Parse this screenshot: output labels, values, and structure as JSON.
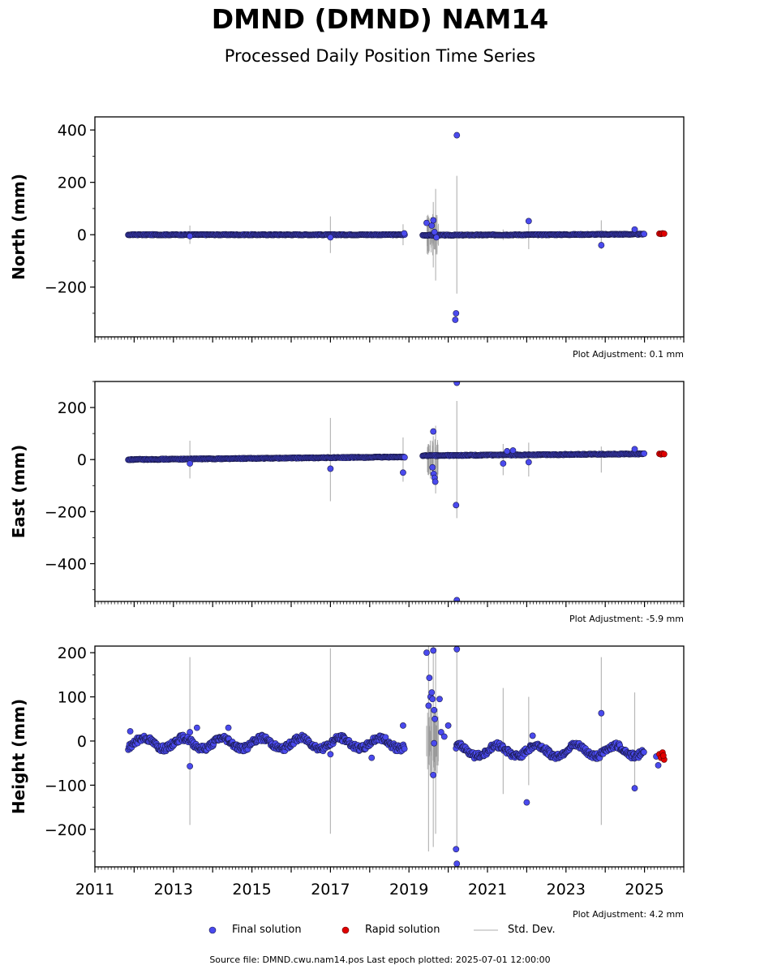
{
  "title": "DMND (DMND) NAM14",
  "subtitle": "Processed Daily Position Time Series",
  "colors": {
    "final": "#4a4aee",
    "final_edge": "#1a1a4a",
    "rapid": "#e00000",
    "std": "#b8b8b8"
  },
  "legend": {
    "final": "Final solution",
    "rapid": "Rapid solution",
    "std": "Std. Dev."
  },
  "footer": "Source file: DMND.cwu.nam14.pos  Last epoch plotted: 2025-07-01 12:00:00",
  "chart_data": [
    {
      "type": "scatter",
      "ylabel": "North (mm)",
      "adjustment": "Plot Adjustment: 0.1 mm",
      "xlim": [
        2011,
        2026
      ],
      "ylim": [
        -390,
        450
      ],
      "yticks": [
        -200,
        0,
        200,
        400
      ],
      "x_tick_labels_shown": false,
      "series": [
        {
          "name": "Final solution",
          "segments": [
            {
              "x": [
                2011.85,
                2018.9
              ],
              "y": [
                0,
                0
              ]
            },
            {
              "x": [
                2019.35,
                2025.0
              ],
              "y": [
                -2,
                2
              ]
            }
          ],
          "points": [
            [
              2013.42,
              -5
            ],
            [
              2017.0,
              -10
            ],
            [
              2018.88,
              5
            ],
            [
              2019.45,
              45
            ],
            [
              2019.58,
              35
            ],
            [
              2019.62,
              55
            ],
            [
              2019.65,
              10
            ],
            [
              2019.7,
              -10
            ],
            [
              2020.22,
              380
            ],
            [
              2020.2,
              -300
            ],
            [
              2020.18,
              -325
            ],
            [
              2022.05,
              52
            ],
            [
              2023.9,
              -40
            ],
            [
              2024.75,
              20
            ]
          ]
        },
        {
          "name": "Rapid solution",
          "points": [
            [
              2025.38,
              4
            ],
            [
              2025.42,
              3
            ],
            [
              2025.46,
              5
            ],
            [
              2025.5,
              4
            ]
          ]
        }
      ],
      "std_bars": [
        [
          2013.42,
          70
        ],
        [
          2017.0,
          140
        ],
        [
          2018.85,
          80
        ],
        [
          2019.5,
          130
        ],
        [
          2019.62,
          250
        ],
        [
          2019.68,
          350
        ],
        [
          2020.22,
          450
        ],
        [
          2021.4,
          40
        ],
        [
          2022.05,
          110
        ],
        [
          2023.9,
          110
        ]
      ]
    },
    {
      "type": "scatter",
      "ylabel": "East (mm)",
      "adjustment": "Plot Adjustment: -5.9 mm",
      "xlim": [
        2011,
        2026
      ],
      "ylim": [
        -545,
        300
      ],
      "yticks": [
        -400,
        -200,
        0,
        200
      ],
      "x_tick_labels_shown": false,
      "series": [
        {
          "name": "Final solution",
          "segments": [
            {
              "x": [
                2011.85,
                2018.9
              ],
              "y": [
                0,
                10
              ]
            },
            {
              "x": [
                2019.35,
                2025.0
              ],
              "y": [
                15,
                22
              ]
            }
          ],
          "points": [
            [
              2013.42,
              -15
            ],
            [
              2017.0,
              -35
            ],
            [
              2018.85,
              -50
            ],
            [
              2019.62,
              108
            ],
            [
              2019.6,
              -30
            ],
            [
              2019.63,
              -55
            ],
            [
              2019.65,
              -70
            ],
            [
              2019.67,
              -85
            ],
            [
              2020.2,
              -175
            ],
            [
              2020.22,
              295
            ],
            [
              2020.22,
              -540
            ],
            [
              2021.4,
              -15
            ],
            [
              2021.5,
              32
            ],
            [
              2021.65,
              35
            ],
            [
              2022.05,
              -10
            ],
            [
              2024.75,
              40
            ]
          ]
        },
        {
          "name": "Rapid solution",
          "points": [
            [
              2025.38,
              22
            ],
            [
              2025.42,
              20
            ],
            [
              2025.46,
              23
            ],
            [
              2025.5,
              21
            ]
          ]
        }
      ],
      "std_bars": [
        [
          2013.42,
          145
        ],
        [
          2017.0,
          320
        ],
        [
          2018.85,
          170
        ],
        [
          2019.5,
          120
        ],
        [
          2019.62,
          180
        ],
        [
          2019.68,
          260
        ],
        [
          2020.22,
          450
        ],
        [
          2021.4,
          120
        ],
        [
          2022.05,
          130
        ],
        [
          2023.9,
          100
        ]
      ]
    },
    {
      "type": "scatter",
      "ylabel": "Height (mm)",
      "adjustment": "Plot Adjustment: 4.2 mm",
      "xlim": [
        2011,
        2026
      ],
      "ylim": [
        -285,
        215
      ],
      "yticks": [
        -200,
        -100,
        0,
        100,
        200
      ],
      "xticks": [
        2011,
        2013,
        2015,
        2017,
        2019,
        2021,
        2023,
        2025
      ],
      "x_tick_labels_shown": true,
      "series": [
        {
          "name": "Final solution",
          "band": {
            "x_start": 2011.85,
            "x_end": 2018.9,
            "mean": -5,
            "amplitude": 12,
            "period": 1.0
          },
          "band2": {
            "x_start": 2020.2,
            "x_end": 2025.0,
            "mean": -22,
            "amplitude": 12,
            "period": 1.0
          },
          "points": [
            [
              2011.9,
              22
            ],
            [
              2013.42,
              -57
            ],
            [
              2013.42,
              20
            ],
            [
              2013.6,
              30
            ],
            [
              2014.4,
              30
            ],
            [
              2017.0,
              -30
            ],
            [
              2018.05,
              -38
            ],
            [
              2018.85,
              35
            ],
            [
              2019.45,
              200
            ],
            [
              2019.52,
              143
            ],
            [
              2019.55,
              100
            ],
            [
              2019.5,
              80
            ],
            [
              2019.58,
              110
            ],
            [
              2019.6,
              95
            ],
            [
              2019.62,
              205
            ],
            [
              2019.64,
              70
            ],
            [
              2019.66,
              50
            ],
            [
              2019.62,
              -77
            ],
            [
              2019.64,
              -5
            ],
            [
              2019.78,
              95
            ],
            [
              2019.82,
              20
            ],
            [
              2019.9,
              10
            ],
            [
              2020.0,
              35
            ],
            [
              2020.22,
              208
            ],
            [
              2020.2,
              -245
            ],
            [
              2020.22,
              -278
            ],
            [
              2022.0,
              -139
            ],
            [
              2022.15,
              12
            ],
            [
              2023.9,
              63
            ],
            [
              2024.75,
              -107
            ],
            [
              2025.3,
              -35
            ],
            [
              2025.35,
              -55
            ]
          ]
        },
        {
          "name": "Rapid solution",
          "points": [
            [
              2025.38,
              -30
            ],
            [
              2025.42,
              -38
            ],
            [
              2025.46,
              -26
            ],
            [
              2025.5,
              -42
            ],
            [
              2025.48,
              -33
            ]
          ]
        }
      ],
      "std_bars": [
        [
          2013.42,
          380
        ],
        [
          2017.0,
          420
        ],
        [
          2019.5,
          500
        ],
        [
          2019.62,
          480
        ],
        [
          2019.68,
          420
        ],
        [
          2020.22,
          500
        ],
        [
          2021.4,
          240
        ],
        [
          2022.05,
          200
        ],
        [
          2023.9,
          380
        ],
        [
          2024.75,
          220
        ]
      ]
    }
  ]
}
